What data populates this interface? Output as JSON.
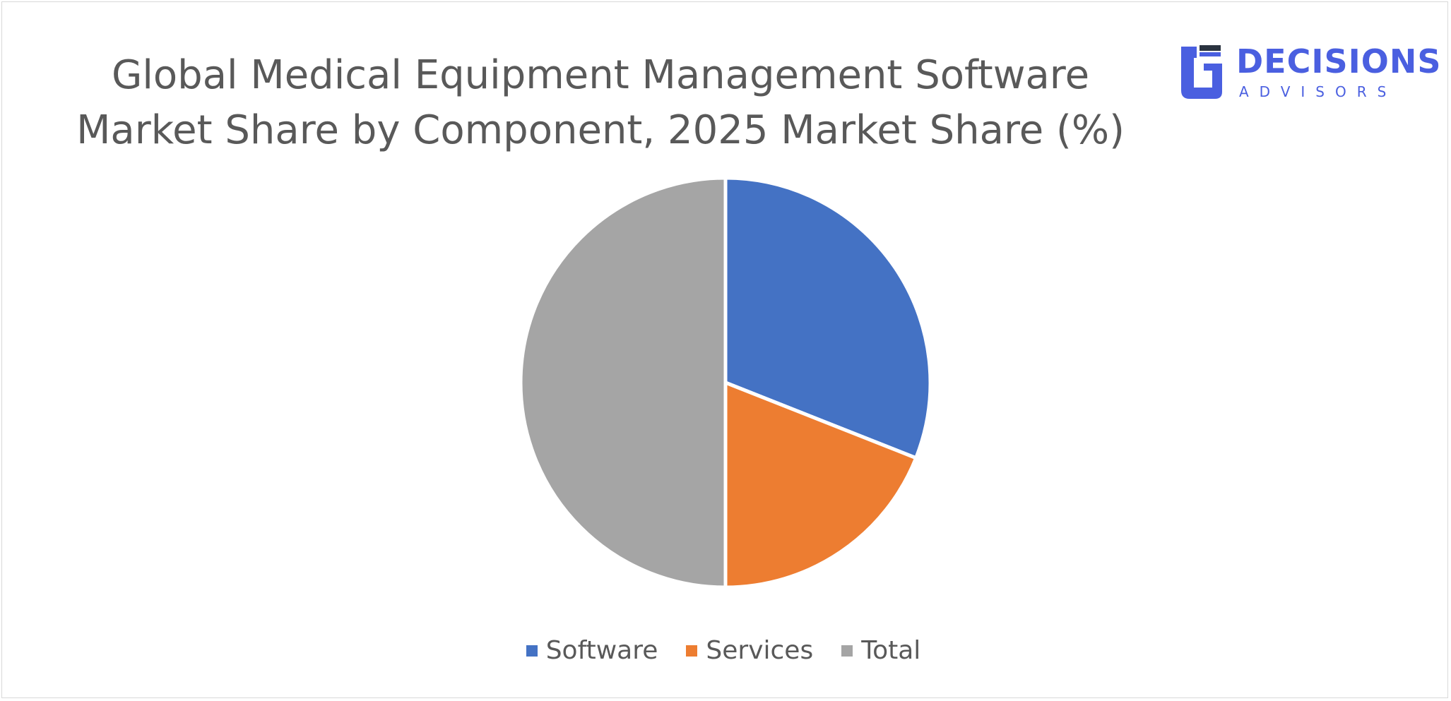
{
  "chart_data": {
    "type": "pie",
    "title": "Global Medical Equipment Management Software Market Share by Component, 2025 Market Share (%)",
    "categories": [
      "Software",
      "Services",
      "Total"
    ],
    "values": [
      31,
      19,
      50
    ],
    "colors": [
      "#4472c4",
      "#ed7d31",
      "#a5a5a5"
    ],
    "legend_position": "bottom"
  },
  "logo": {
    "word": "DECISIONS",
    "sub": "ADVISORS",
    "color": "#4a5fe0"
  }
}
